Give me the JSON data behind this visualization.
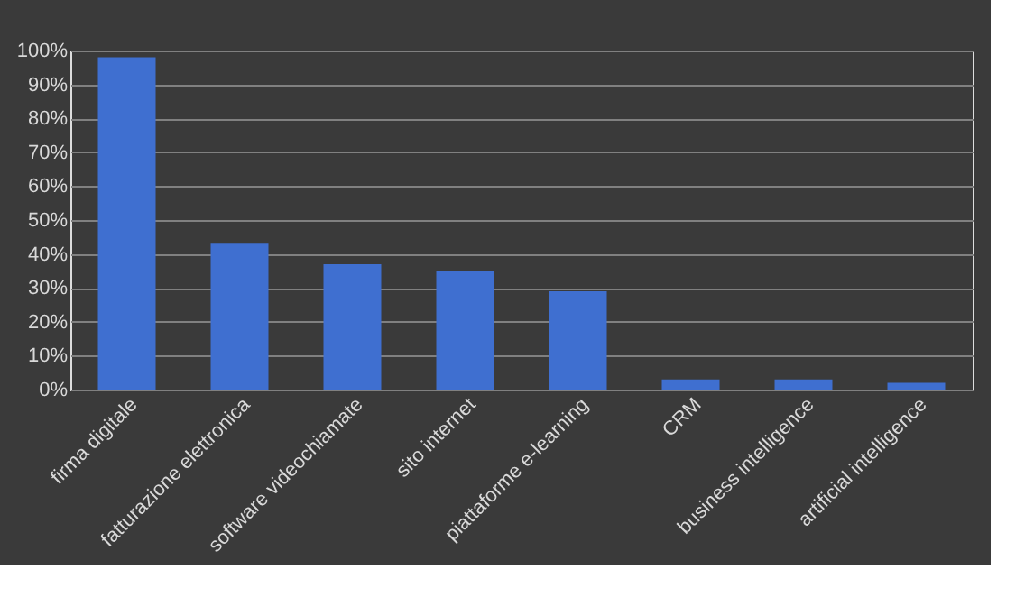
{
  "chart_data": {
    "type": "bar",
    "categories": [
      "firma digitale",
      "fatturazione elettronica",
      "software videochiamate",
      "sito internet",
      "piattaforme e-learning",
      "CRM",
      "business intelligence",
      "artificial intelligence"
    ],
    "values": [
      98,
      43,
      37,
      35,
      29,
      3,
      3,
      2
    ],
    "color": "#3f6fd0",
    "ylim": [
      0,
      100
    ],
    "yticks": [
      {
        "value": 0,
        "label": "0%"
      },
      {
        "value": 10,
        "label": "10%"
      },
      {
        "value": 20,
        "label": "20%"
      },
      {
        "value": 30,
        "label": "30%"
      },
      {
        "value": 40,
        "label": "40%"
      },
      {
        "value": 50,
        "label": "50%"
      },
      {
        "value": 60,
        "label": "60%"
      },
      {
        "value": 70,
        "label": "70%"
      },
      {
        "value": 80,
        "label": "80%"
      },
      {
        "value": 90,
        "label": "90%"
      },
      {
        "value": 100,
        "label": "100%"
      }
    ],
    "grid": "y"
  }
}
